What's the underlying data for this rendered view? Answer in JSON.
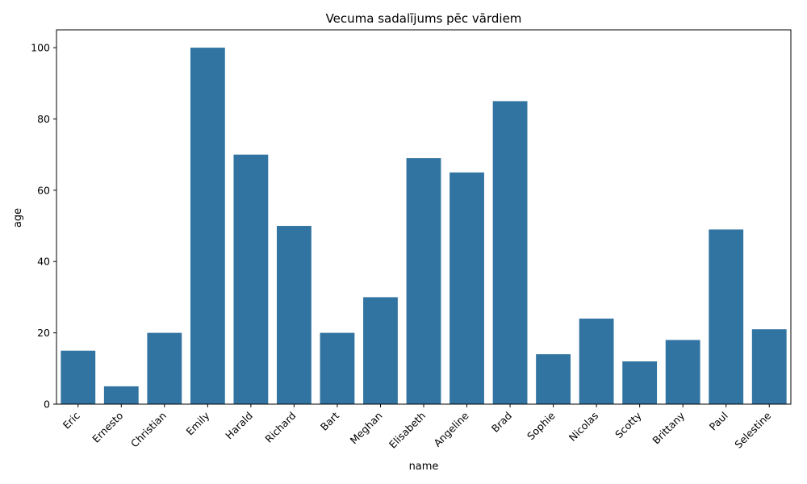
{
  "chart_data": {
    "type": "bar",
    "title": "Vecuma sadalījums pēc vārdiem",
    "xlabel": "name",
    "ylabel": "age",
    "categories": [
      "Eric",
      "Ernesto",
      "Christian",
      "Emily",
      "Harald",
      "Richard",
      "Bart",
      "Meghan",
      "Elisabeth",
      "Angeline",
      "Brad",
      "Sophie",
      "Nicolas",
      "Scotty",
      "Brittany",
      "Paul",
      "Selestine"
    ],
    "values": [
      15,
      5,
      20,
      100,
      70,
      50,
      20,
      30,
      69,
      65,
      85,
      14,
      24,
      12,
      18,
      49,
      21
    ],
    "ylim": [
      0,
      105
    ],
    "yticks": [
      0,
      20,
      40,
      60,
      80,
      100
    ],
    "grid": false,
    "bar_color": "#3274a1"
  }
}
